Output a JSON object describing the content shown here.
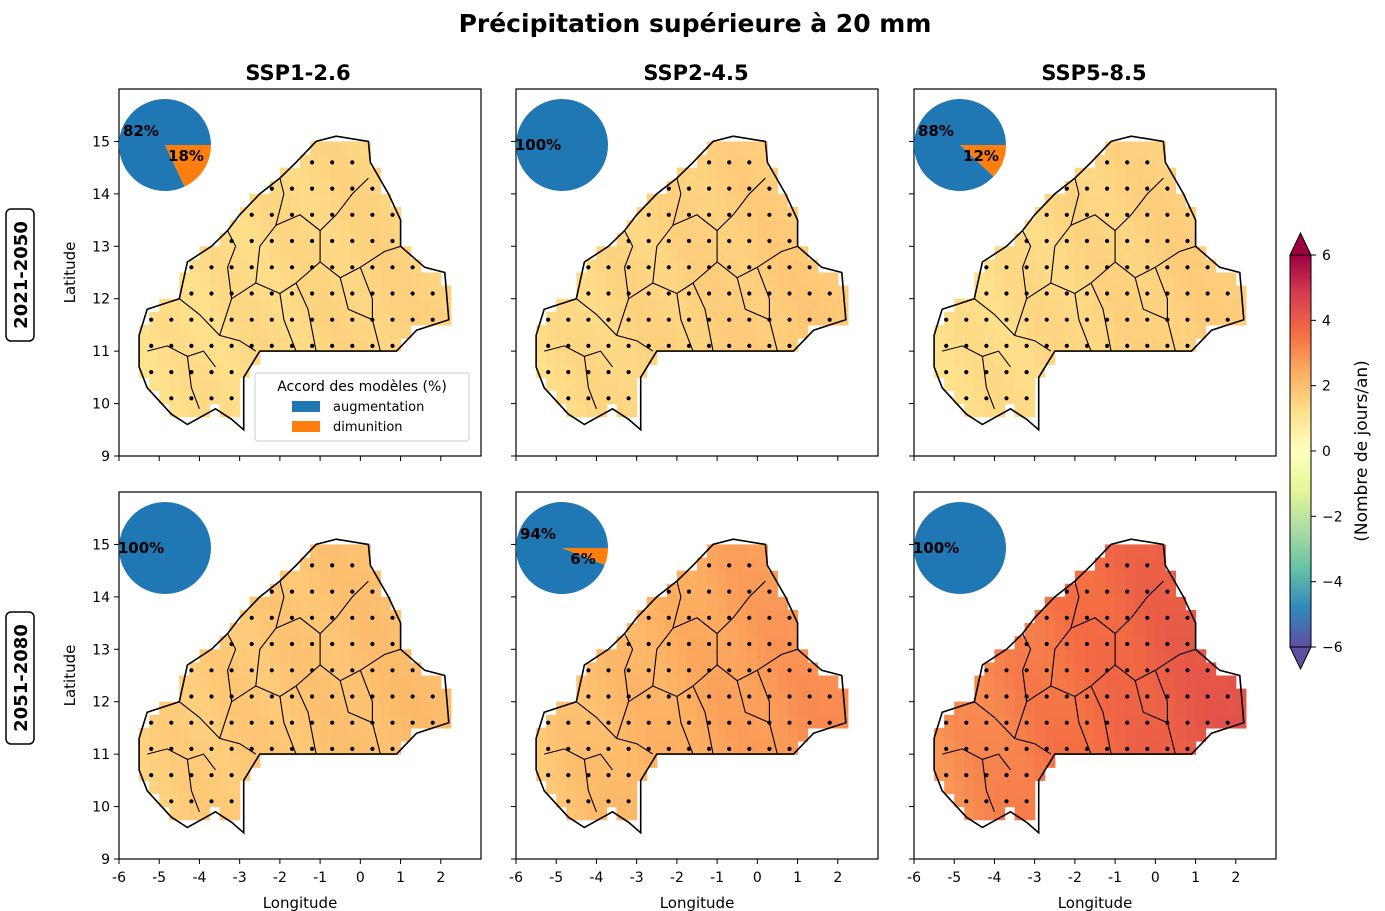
{
  "figure": {
    "title": "Précipitation supérieure à 20 mm",
    "colorbar": {
      "label": "(Nombre de jours/an)",
      "ticks": [
        "6",
        "4",
        "2",
        "0",
        "−2",
        "−4",
        "−6"
      ],
      "vmin": -6,
      "vmax": 6,
      "colormap": "Spectral_r"
    },
    "legend": {
      "title": "Accord des modèles (%)",
      "items": [
        {
          "label": "augmentation",
          "color": "#1f77b4"
        },
        {
          "label": "dimunition",
          "color": "#ff7f0e"
        }
      ]
    },
    "row_labels": [
      "2021-2050",
      "2051-2080"
    ],
    "col_titles": [
      "SSP1-2.6",
      "SSP2-4.5",
      "SSP5-8.5"
    ],
    "axis": {
      "xlabel": "Longitude",
      "ylabel": "Latitude",
      "xticks": [
        "-6",
        "-5",
        "-4",
        "-3",
        "-2",
        "-1",
        "0",
        "1",
        "2"
      ],
      "yticks": [
        "9",
        "10",
        "11",
        "12",
        "13",
        "14",
        "15"
      ]
    }
  },
  "chart_data": [
    {
      "type": "heatmap",
      "period": "2021-2050",
      "scenario": "SSP1-2.6",
      "xlim": [
        -6,
        3
      ],
      "ylim": [
        9,
        16
      ],
      "mean_change": 1.2,
      "east_change": 1.5,
      "pie": {
        "augmentation": 82,
        "dimunition": 18,
        "labels": [
          "82%",
          "18%"
        ]
      }
    },
    {
      "type": "heatmap",
      "period": "2021-2050",
      "scenario": "SSP2-4.5",
      "xlim": [
        -6,
        3
      ],
      "ylim": [
        9,
        16
      ],
      "mean_change": 1.3,
      "east_change": 1.7,
      "pie": {
        "augmentation": 100,
        "dimunition": 0,
        "labels": [
          "100%"
        ]
      }
    },
    {
      "type": "heatmap",
      "period": "2021-2050",
      "scenario": "SSP5-8.5",
      "xlim": [
        -6,
        3
      ],
      "ylim": [
        9,
        16
      ],
      "mean_change": 1.2,
      "east_change": 1.6,
      "pie": {
        "augmentation": 88,
        "dimunition": 12,
        "labels": [
          "88%",
          "12%"
        ]
      }
    },
    {
      "type": "heatmap",
      "period": "2051-2080",
      "scenario": "SSP1-2.6",
      "xlim": [
        -6,
        3
      ],
      "ylim": [
        9,
        16
      ],
      "mean_change": 1.6,
      "east_change": 2.0,
      "pie": {
        "augmentation": 100,
        "dimunition": 0,
        "labels": [
          "100%"
        ]
      }
    },
    {
      "type": "heatmap",
      "period": "2051-2080",
      "scenario": "SSP2-4.5",
      "xlim": [
        -6,
        3
      ],
      "ylim": [
        9,
        16
      ],
      "mean_change": 1.8,
      "east_change": 2.8,
      "pie": {
        "augmentation": 94,
        "dimunition": 6,
        "labels": [
          "94%",
          "6%"
        ]
      }
    },
    {
      "type": "heatmap",
      "period": "2051-2080",
      "scenario": "SSP5-8.5",
      "xlim": [
        -6,
        3
      ],
      "ylim": [
        9,
        16
      ],
      "mean_change": 2.9,
      "east_change": 4.0,
      "pie": {
        "augmentation": 100,
        "dimunition": 0,
        "labels": [
          "100%"
        ]
      }
    }
  ]
}
